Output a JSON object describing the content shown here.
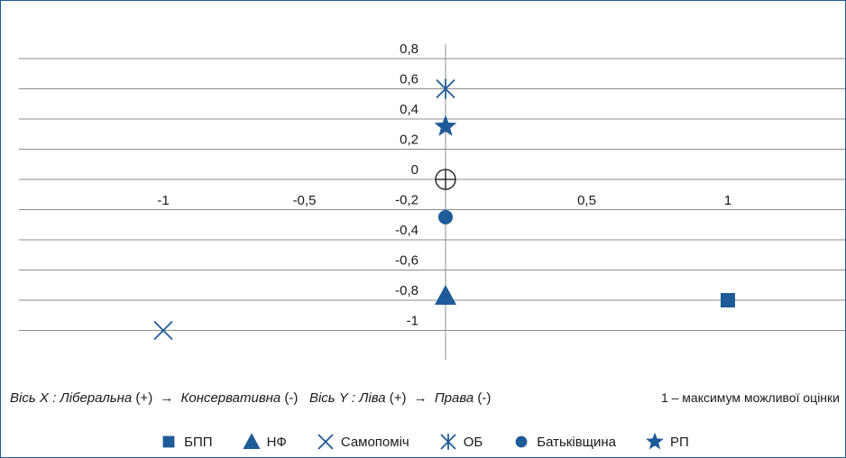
{
  "chart_data": {
    "type": "scatter",
    "title": "",
    "xlim": [
      -1.5,
      1.5
    ],
    "ylim": [
      -1.2,
      0.9
    ],
    "x_ticks": [
      {
        "value": -1,
        "label": "-1"
      },
      {
        "value": -0.5,
        "label": "-0,5"
      },
      {
        "value": 0.5,
        "label": "0,5"
      },
      {
        "value": 1,
        "label": "1"
      }
    ],
    "y_ticks": [
      {
        "value": 0.8,
        "label": "0,8"
      },
      {
        "value": 0.6,
        "label": "0,6"
      },
      {
        "value": 0.4,
        "label": "0,4"
      },
      {
        "value": 0.2,
        "label": "0,2"
      },
      {
        "value": 0,
        "label": "0"
      },
      {
        "value": -0.2,
        "label": "-0,2"
      },
      {
        "value": -0.4,
        "label": "-0,4"
      },
      {
        "value": -0.6,
        "label": "-0,6"
      },
      {
        "value": -0.8,
        "label": "-0,8"
      },
      {
        "value": -1,
        "label": "-1"
      }
    ],
    "grid": "horizontal",
    "origin_marker": true,
    "series": [
      {
        "name": "БПП",
        "marker": "square",
        "x": [
          1
        ],
        "y": [
          -0.8
        ]
      },
      {
        "name": "НФ",
        "marker": "triangle",
        "x": [
          0
        ],
        "y": [
          -0.77
        ]
      },
      {
        "name": "Самопоміч",
        "marker": "x",
        "x": [
          -1
        ],
        "y": [
          -1
        ]
      },
      {
        "name": "ОБ",
        "marker": "asterisk",
        "x": [
          0
        ],
        "y": [
          0.6
        ]
      },
      {
        "name": "Батьківщина",
        "marker": "circle",
        "x": [
          0
        ],
        "y": [
          -0.25
        ]
      },
      {
        "name": "РП",
        "marker": "star",
        "x": [
          0
        ],
        "y": [
          0.35
        ]
      }
    ],
    "legend_position": "bottom"
  },
  "colors": {
    "marker": "#1f5a99",
    "grid": "#8c8c8c",
    "axis": "#8c8c8c"
  },
  "caption": {
    "x_axis_prefix": "Вісь X : ",
    "x_left": "Ліберальна",
    "x_left_sign": " (+)",
    "x_right": "Консервативна",
    "x_right_sign": " (-)",
    "y_axis_prefix": "Вісь Y : ",
    "y_left": "Ліва",
    "y_left_sign": " (+)",
    "y_right": "Права",
    "y_right_sign": " (-)",
    "arrow": "→",
    "note": "1 – максимум можливої оцінки"
  }
}
